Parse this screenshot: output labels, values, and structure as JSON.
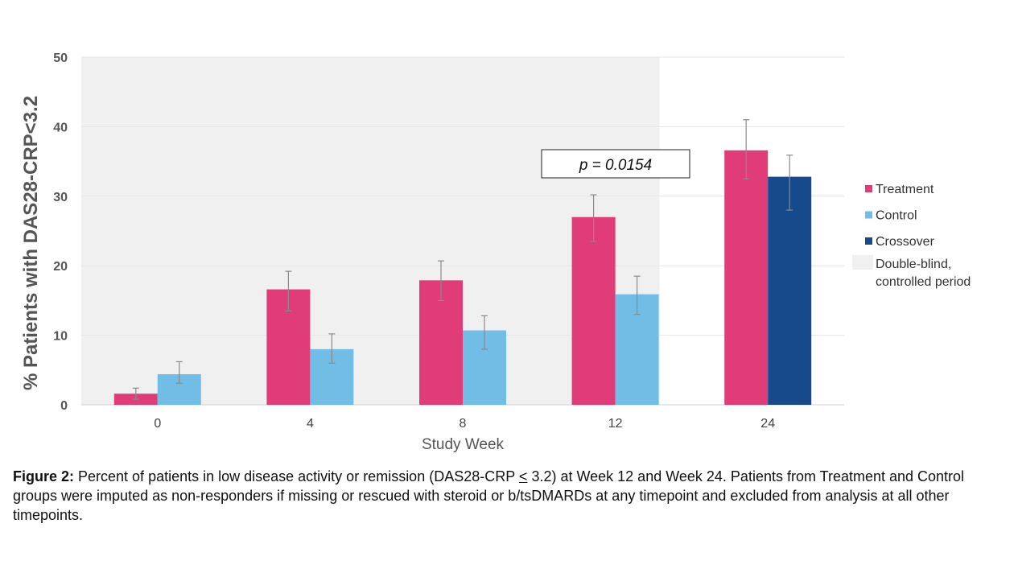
{
  "chart_data": {
    "type": "bar",
    "ylabel": "% Patients with DAS28-CRP<3.2",
    "xlabel": "Study Week",
    "ylim": [
      0,
      50
    ],
    "yticks": [
      0,
      10,
      20,
      30,
      40,
      50
    ],
    "categories": [
      "0",
      "4",
      "8",
      "12",
      "24"
    ],
    "series": [
      {
        "name": "Treatment",
        "color": "#E03D78",
        "values": [
          1.6,
          16.6,
          17.9,
          27.0,
          36.6
        ],
        "error": [
          [
            0.8,
            2.4
          ],
          [
            13.5,
            19.2
          ],
          [
            15.0,
            20.7
          ],
          [
            23.5,
            30.2
          ],
          [
            32.5,
            41.0
          ]
        ]
      },
      {
        "name": "Control",
        "color": "#72BDE6",
        "values": [
          4.4,
          8.0,
          10.7,
          15.9,
          null
        ],
        "error": [
          [
            3.1,
            6.2
          ],
          [
            6.0,
            10.2
          ],
          [
            8.0,
            12.8
          ],
          [
            13.0,
            18.5
          ],
          null
        ]
      },
      {
        "name": "Crossover",
        "color": "#174A8B",
        "values": [
          null,
          null,
          null,
          null,
          32.8
        ],
        "error": [
          null,
          null,
          null,
          null,
          [
            28.0,
            35.9
          ]
        ]
      }
    ],
    "shaded_region": {
      "label": "Double-blind, controlled period",
      "label_line1": "Double-blind,",
      "label_line2": "controlled period",
      "color": "#F0F0F0"
    },
    "annotation": {
      "text": "p = 0.0154"
    },
    "grid": true,
    "legend_position": "right"
  },
  "caption": {
    "label": "Figure 2:",
    "part1": " Percent of patients in low disease activity or remission (DAS28-CRP ",
    "symbol": "<",
    "part2": " 3.2) at Week 12 and Week 24. Patients from Treatment and Control groups were imputed as non-responders if missing or rescued with steroid or b/tsDMARDs at any timepoint and excluded from analysis at all other timepoints."
  }
}
